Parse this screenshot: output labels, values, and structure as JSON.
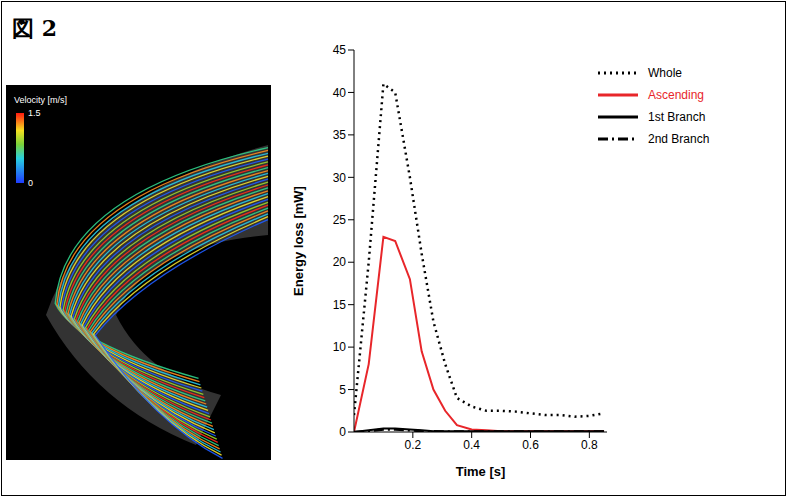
{
  "figure_label": "図 2",
  "flow_image": {
    "colorbar": {
      "title": "Velocity [m/s]",
      "range": [
        0,
        1.5
      ],
      "ticks": [
        0,
        1.5
      ]
    }
  },
  "chart_data": {
    "type": "line",
    "x_label": "Time [s]",
    "y_label": "Energy loss [mW]",
    "x": [
      0,
      0.05,
      0.1,
      0.14,
      0.19,
      0.23,
      0.27,
      0.31,
      0.35,
      0.4,
      0.45,
      0.5,
      0.55,
      0.6,
      0.65,
      0.7,
      0.75,
      0.8,
      0.85
    ],
    "series": [
      {
        "name": "Whole",
        "color": "#000000",
        "line_style": "dotted",
        "values": [
          2,
          20,
          41,
          40,
          30,
          21,
          13,
          8,
          4,
          3,
          2.5,
          2.5,
          2.4,
          2.2,
          2,
          2,
          1.8,
          1.9,
          2.2
        ]
      },
      {
        "name": "Ascending",
        "color": "#e8262a",
        "line_style": "solid",
        "values": [
          0,
          8,
          23,
          22.5,
          18,
          9.5,
          5,
          2.5,
          0.8,
          0.3,
          0.2,
          0.1,
          0.1,
          0.1,
          0.1,
          0.1,
          0.1,
          0.1,
          0.1
        ]
      },
      {
        "name": "1st Branch",
        "color": "#000000",
        "line_style": "solid",
        "values": [
          0,
          0.2,
          0.4,
          0.4,
          0.3,
          0.2,
          0.1,
          0.1,
          0.1,
          0.1,
          0.1,
          0.1,
          0.1,
          0.1,
          0.1,
          0.1,
          0.1,
          0.1,
          0.1
        ]
      },
      {
        "name": "2nd Branch",
        "color": "#000000",
        "line_style": "dashdot",
        "values": [
          0,
          0.1,
          0.3,
          0.3,
          0.2,
          0.1,
          0.1,
          0.05,
          0.05,
          0.05,
          0.05,
          0.05,
          0.05,
          0.05,
          0.05,
          0.05,
          0.05,
          0.05,
          0.05
        ]
      }
    ],
    "xlim": [
      0,
      0.86
    ],
    "xticks": [
      0.2,
      0.4,
      0.6,
      0.8
    ],
    "ylim": [
      0,
      45
    ],
    "yticks": [
      0,
      5,
      10,
      15,
      20,
      25,
      30,
      35,
      40,
      45
    ],
    "grid": false,
    "legend": "upper right"
  }
}
